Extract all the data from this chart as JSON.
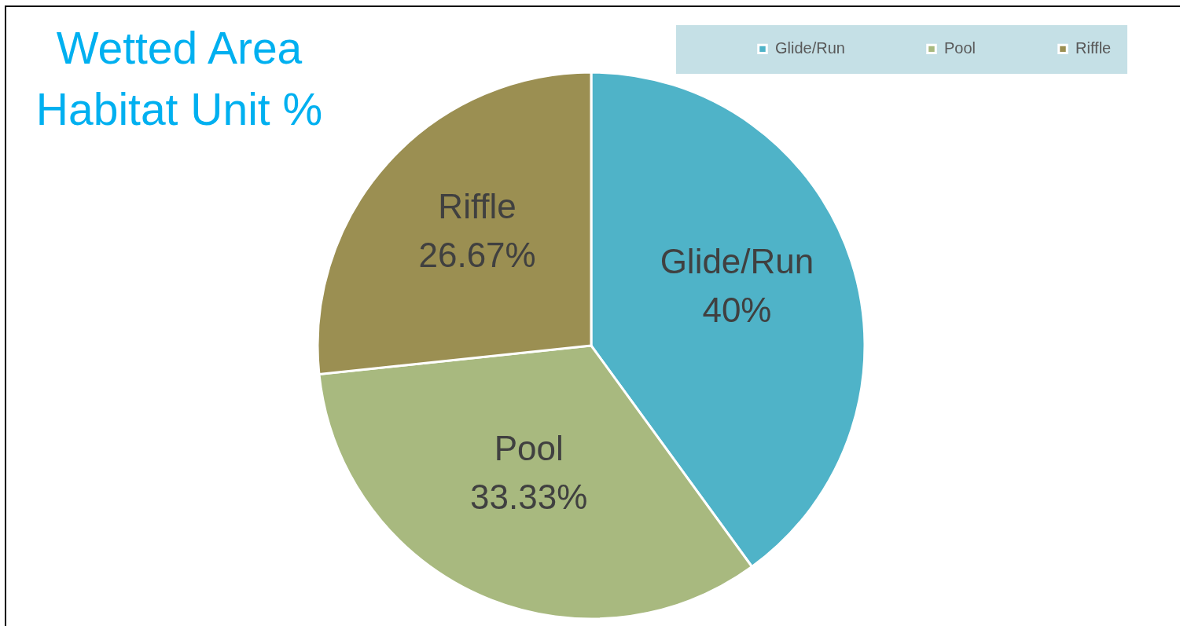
{
  "chart_data": {
    "type": "pie",
    "title": "Wetted Area\nHabitat Unit %",
    "categories": [
      "Glide/Run",
      "Pool",
      "Riffle"
    ],
    "values": [
      40,
      33.33,
      26.67
    ],
    "colors": [
      "#4fb3c8",
      "#a8b97f",
      "#9b8f52"
    ],
    "value_labels": [
      "40%",
      "33.33%",
      "26.67%"
    ],
    "legend": "top right"
  }
}
